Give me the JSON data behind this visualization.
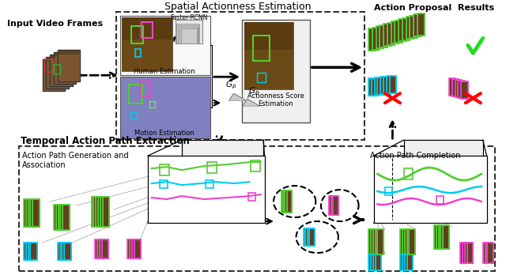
{
  "title_spatial": "Spatial Actionness Estimation",
  "title_temporal": "Temporal Action Path Extraction",
  "label_input": "Input Video Frames",
  "label_action_proposal": "Action Proposal  Results",
  "label_human_est": "Human Estimation",
  "label_motion_est": "Motion Estimation",
  "label_actionness": "Actionness Score\nEstimation",
  "label_faster_rcnn": "Faster-RCNN",
  "label_path_gen": "Action Path Generation and\nAssociation",
  "label_path_comp": "Action Path Completion",
  "green": "#55cc33",
  "cyan": "#00ccee",
  "magenta": "#ee44cc",
  "red": "#ee2222",
  "dark": "#222222"
}
